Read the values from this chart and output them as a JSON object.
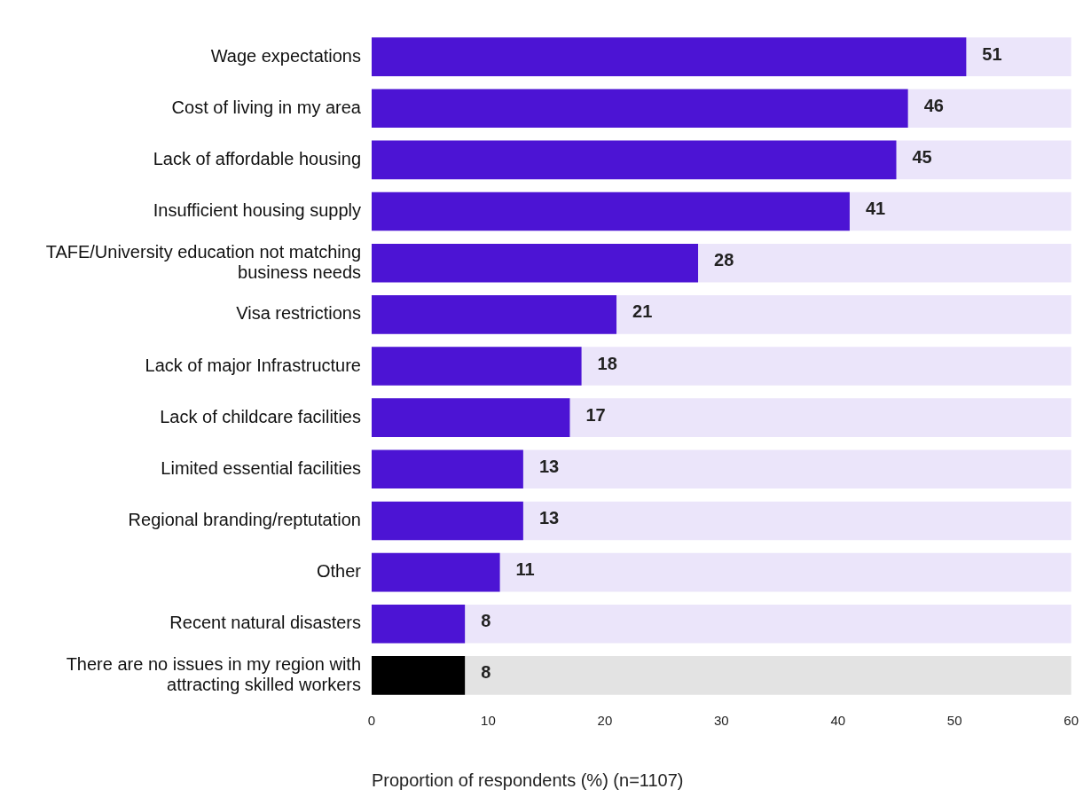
{
  "chart_data": {
    "type": "bar",
    "orientation": "horizontal",
    "categories": [
      "Wage expectations",
      "Cost of living in my area",
      "Lack of affordable housing",
      "Insufficient housing supply",
      "TAFE/University education not matching business needs",
      "Visa restrictions",
      "Lack of major Infrastructure",
      "Lack of childcare facilities",
      "Limited essential facilities",
      "Regional branding/reptutation",
      "Other",
      "Recent natural disasters",
      "There are no issues in my region with attracting skilled workers"
    ],
    "values": [
      51,
      46,
      45,
      41,
      28,
      21,
      18,
      17,
      13,
      13,
      11,
      8,
      8
    ],
    "colors": [
      "#4c14d4",
      "#4c14d4",
      "#4c14d4",
      "#4c14d4",
      "#4c14d4",
      "#4c14d4",
      "#4c14d4",
      "#4c14d4",
      "#4c14d4",
      "#4c14d4",
      "#4c14d4",
      "#4c14d4",
      "#000000"
    ],
    "xlim": [
      0,
      60
    ],
    "xticks": [
      0,
      10,
      20,
      30,
      40,
      50,
      60
    ],
    "xlabel": "Proportion of respondents (%) (n=1107)",
    "data_labels": true,
    "grid": false,
    "legend": false
  }
}
